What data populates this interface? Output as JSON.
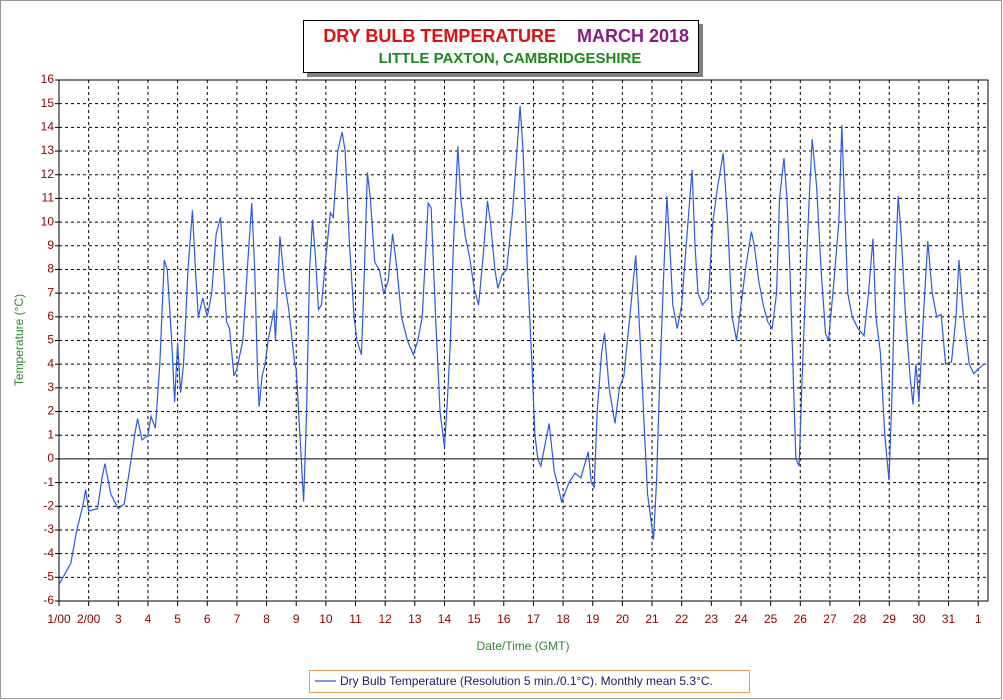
{
  "chart_data": {
    "type": "line",
    "title": "DRY BULB TEMPERATURE",
    "title_period": "MARCH 2018",
    "subtitle": "LITTLE PAXTON, CAMBRIDGESHIRE",
    "xlabel": "Date/Time (GMT)",
    "ylabel": "Temperature (°C)",
    "xlim": [
      0,
      31.33
    ],
    "ylim": [
      -6,
      16
    ],
    "xticks": [
      {
        "value": 0,
        "label": "1/00"
      },
      {
        "value": 1,
        "label": "2/00"
      },
      {
        "value": 2,
        "label": "3"
      },
      {
        "value": 3,
        "label": "4"
      },
      {
        "value": 4,
        "label": "5"
      },
      {
        "value": 5,
        "label": "6"
      },
      {
        "value": 6,
        "label": "7"
      },
      {
        "value": 7,
        "label": "8"
      },
      {
        "value": 8,
        "label": "9"
      },
      {
        "value": 9,
        "label": "10"
      },
      {
        "value": 10,
        "label": "11"
      },
      {
        "value": 11,
        "label": "12"
      },
      {
        "value": 12,
        "label": "13"
      },
      {
        "value": 13,
        "label": "14"
      },
      {
        "value": 14,
        "label": "15"
      },
      {
        "value": 15,
        "label": "16"
      },
      {
        "value": 16,
        "label": "17"
      },
      {
        "value": 17,
        "label": "18"
      },
      {
        "value": 18,
        "label": "19"
      },
      {
        "value": 19,
        "label": "20"
      },
      {
        "value": 20,
        "label": "21"
      },
      {
        "value": 21,
        "label": "22"
      },
      {
        "value": 22,
        "label": "23"
      },
      {
        "value": 23,
        "label": "24"
      },
      {
        "value": 24,
        "label": "25"
      },
      {
        "value": 25,
        "label": "26"
      },
      {
        "value": 26,
        "label": "27"
      },
      {
        "value": 27,
        "label": "28"
      },
      {
        "value": 28,
        "label": "29"
      },
      {
        "value": 29,
        "label": "30"
      },
      {
        "value": 30,
        "label": "31"
      },
      {
        "value": 31,
        "label": "1"
      }
    ],
    "yticks": [
      -6,
      -5,
      -4,
      -3,
      -2,
      -1,
      0,
      1,
      2,
      3,
      4,
      5,
      6,
      7,
      8,
      9,
      10,
      11,
      12,
      13,
      14,
      15,
      16
    ],
    "grid": true,
    "zero_line": true,
    "legend": "bottom",
    "x": [
      0,
      0.4,
      0.6,
      0.8,
      0.9,
      1.0,
      1.3,
      1.45,
      1.55,
      1.75,
      2.0,
      2.2,
      2.4,
      2.55,
      2.65,
      2.8,
      3.0,
      3.1,
      3.25,
      3.4,
      3.55,
      3.65,
      3.8,
      3.9,
      4.0,
      4.1,
      4.2,
      4.35,
      4.5,
      4.6,
      4.7,
      4.85,
      5.0,
      5.15,
      5.3,
      5.45,
      5.55,
      5.65,
      5.75,
      5.9,
      6.0,
      6.2,
      6.35,
      6.5,
      6.6,
      6.7,
      6.75,
      6.85,
      6.95,
      7.05,
      7.25,
      7.3,
      7.45,
      7.6,
      7.75,
      7.95,
      8.0,
      8.25,
      8.35,
      8.45,
      8.55,
      8.65,
      8.75,
      8.85,
      9.0,
      9.15,
      9.25,
      9.4,
      9.55,
      9.65,
      9.8,
      9.95,
      10.05,
      10.2,
      10.3,
      10.4,
      10.5,
      10.65,
      10.8,
      10.95,
      11.1,
      11.25,
      11.4,
      11.55,
      11.75,
      11.95,
      12.1,
      12.25,
      12.45,
      12.55,
      12.7,
      12.85,
      12.95,
      13.0,
      13.1,
      13.2,
      13.3,
      13.45,
      13.55,
      13.7,
      13.85,
      14.0,
      14.15,
      14.3,
      14.45,
      14.55,
      14.7,
      14.8,
      14.95,
      15.1,
      15.3,
      15.55,
      15.65,
      15.8,
      15.95,
      16.05,
      16.15,
      16.25,
      16.53,
      16.7,
      16.95,
      17.2,
      17.4,
      17.6,
      17.85,
      17.95,
      18.05,
      18.15,
      18.3,
      18.4,
      18.55,
      18.75,
      18.9,
      19.05,
      19.25,
      19.45,
      19.6,
      19.75,
      19.85,
      20.05,
      20.15,
      20.25,
      20.4,
      20.5,
      20.6,
      20.7,
      20.85,
      21.0,
      21.15,
      21.35,
      21.45,
      21.55,
      21.7,
      21.9,
      22.05,
      22.2,
      22.4,
      22.55,
      22.7,
      22.85,
      23.0,
      23.15,
      23.35,
      23.45,
      23.6,
      23.75,
      23.9,
      24.05,
      24.2,
      24.3,
      24.45,
      24.55,
      24.65,
      24.75,
      24.85,
      24.96,
      25.05,
      25.2,
      25.3,
      25.4,
      25.55,
      25.7,
      25.85,
      25.95,
      26.1,
      26.3,
      26.4,
      26.5,
      26.6,
      26.75,
      26.95,
      27.15,
      27.3,
      27.45,
      27.55,
      27.7,
      27.85,
      27.99,
      28.1,
      28.2,
      28.3,
      28.4,
      28.55,
      28.7,
      28.8,
      28.9,
      29.0,
      29.15,
      29.3,
      29.45,
      29.6,
      29.75,
      29.9,
      30.1,
      30.25,
      30.35,
      30.5,
      30.7,
      30.85,
      31.0,
      31.2
    ],
    "series": [
      {
        "name": "Dry Bulb Temperature (Resolution 5 min./0.1°C). Monthly mean 5.3°C.",
        "color": "#2a5ae0",
        "values": [
          -5.3,
          -4.4,
          -3,
          -2,
          -1.3,
          -2.2,
          -2.1,
          -0.8,
          -0.2,
          -1.5,
          -2.1,
          -1.9,
          -0.3,
          1.0,
          1.7,
          0.8,
          1.0,
          1.8,
          1.3,
          4.0,
          8.4,
          8.0,
          5.0,
          2.4,
          4.9,
          2.8,
          4.0,
          8.0,
          10.5,
          8.0,
          6.0,
          6.8,
          6.0,
          7.0,
          9.5,
          10.2,
          8.0,
          5.8,
          5.5,
          3.5,
          3.8,
          5.0,
          8.0,
          10.8,
          8.0,
          3.5,
          2.2,
          3.5,
          4.0,
          5.0,
          6.3,
          5.0,
          9.4,
          7.5,
          6.3,
          4.0,
          3.8,
          -1.8,
          2.0,
          8.0,
          10.1,
          8.5,
          6.3,
          6.5,
          8.5,
          10.4,
          10.2,
          13.0,
          13.8,
          13.0,
          9.0,
          6.0,
          5.0,
          4.4,
          8.0,
          12.1,
          11.0,
          8.3,
          8.0,
          7.0,
          7.5,
          9.5,
          8.0,
          6.0,
          5.0,
          4.4,
          5.0,
          6.0,
          10.8,
          10.6,
          6.0,
          2.0,
          1.0,
          0.5,
          2.5,
          5.0,
          9.0,
          13.2,
          11.0,
          9.4,
          8.5,
          7.2,
          6.5,
          8.5,
          10.9,
          10.0,
          8.0,
          7.2,
          7.8,
          8.0,
          10.5,
          14.9,
          13.0,
          8.0,
          4.0,
          1.0,
          0,
          -0.3,
          1.5,
          -0.5,
          -1.8,
          -1.0,
          -0.6,
          -0.8,
          0.3,
          -1.0,
          -1.2,
          2.0,
          4.5,
          5.3,
          3.0,
          1.5,
          3.0,
          3.5,
          6.0,
          8.6,
          5.0,
          1.0,
          -1.5,
          -3.4,
          -1.0,
          3.0,
          8.0,
          11.1,
          9.0,
          6.5,
          5.5,
          6.5,
          9.0,
          12.2,
          9.0,
          7.0,
          6.5,
          6.8,
          10.0,
          11.4,
          12.9,
          10.0,
          6.0,
          5.0,
          6.5,
          8.0,
          9.6,
          9.0,
          7.5,
          6.5,
          5.8,
          5.5,
          7.0,
          11.0,
          12.7,
          11.0,
          8.0,
          4.0,
          0,
          -0.3,
          3.0,
          8.0,
          11.0,
          13.5,
          11.5,
          8.0,
          5.3,
          5.0,
          7.0,
          10.0,
          14.1,
          10.5,
          7.0,
          6.0,
          5.5,
          5.2,
          7.0,
          9.3,
          6.0,
          4.5,
          1.0,
          -0.9,
          3.0,
          8.0,
          11.1,
          9.5,
          6.0,
          3.5,
          2.3,
          4.0,
          2.4,
          6.0,
          9.2,
          7.0,
          6.0,
          6.1,
          4.0,
          4.1,
          6.0,
          8.4,
          6.0,
          4.0,
          3.6,
          3.8,
          4.0
        ]
      }
    ]
  }
}
